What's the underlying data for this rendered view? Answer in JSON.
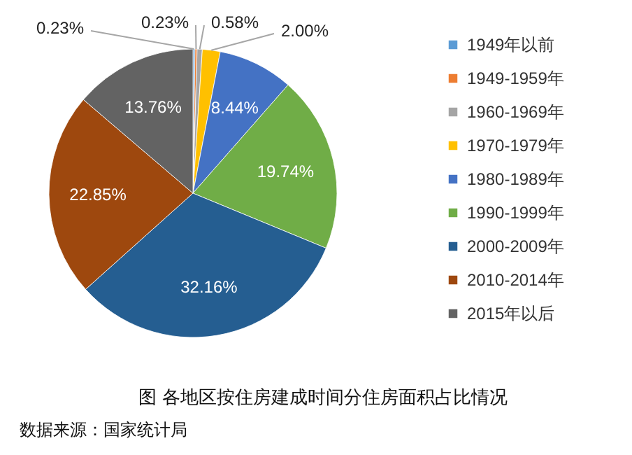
{
  "chart_data": {
    "type": "pie",
    "title": "图 各地区按住房建成时间分住房面积占比情况",
    "categories": [
      "1949年以前",
      "1949-1959年",
      "1960-1969年",
      "1970-1979年",
      "1980-1989年",
      "1990-1999年",
      "2000-2009年",
      "2010-2014年",
      "2015年以后"
    ],
    "values": [
      0.23,
      0.23,
      0.58,
      2.0,
      8.44,
      19.74,
      32.16,
      22.85,
      13.76
    ],
    "colors": [
      "#5b9bd5",
      "#ed7d31",
      "#a5a5a5",
      "#ffc000",
      "#4472c4",
      "#70ad47",
      "#255e91",
      "#9e480e",
      "#636363"
    ],
    "value_labels": [
      "0.23%",
      "0.23%",
      "0.58%",
      "2.00%",
      "8.44%",
      "19.74%",
      "32.16%",
      "22.85%",
      "13.76%"
    ],
    "legend": "right",
    "annotations": [
      "数据来源：国家统计局"
    ]
  }
}
